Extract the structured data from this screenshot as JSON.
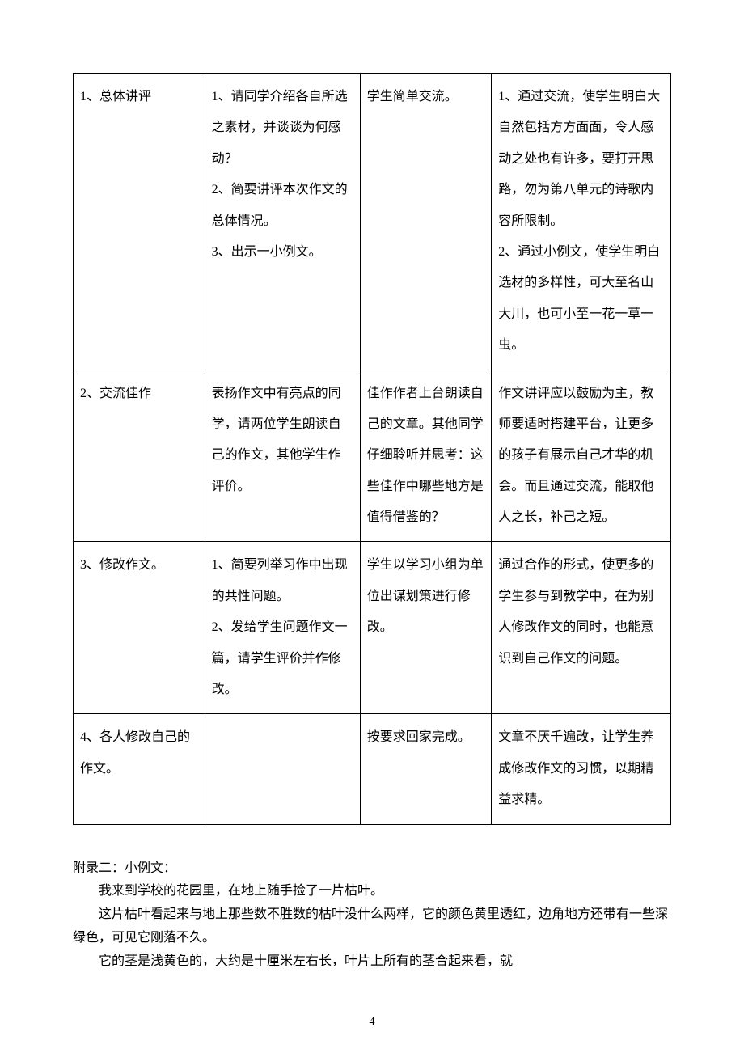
{
  "table": {
    "column_widths": [
      "22%",
      "26%",
      "22%",
      "30%"
    ],
    "cell_style": {
      "font_size": 16,
      "line_height": 2.4,
      "border_color": "#000000",
      "text_color": "#000000",
      "background_color": "#ffffff"
    },
    "rows": [
      {
        "c0": "1、总体讲评",
        "c1": "1、请同学介绍各自所选之素材，并谈谈为何感动？\n2、简要讲评本次作文的总体情况。\n3、出示一小例文。",
        "c2": "学生简单交流。",
        "c3": "1、通过交流，使学生明白大自然包括方方面面，令人感动之处也有许多，要打开思路，勿为第八单元的诗歌内容所限制。\n2、通过小例文，使学生明白选材的多样性，可大至名山大川，也可小至一花一草一虫。"
      },
      {
        "c0": "2、交流佳作",
        "c1": "表扬作文中有亮点的同学，请两位学生朗读自己的作文，其他学生作评价。",
        "c2": "佳作作者上台朗读自己的文章。其他同学仔细聆听并思考：这些佳作中哪些地方是值得借鉴的？",
        "c3": "作文讲评应以鼓励为主，教师要适时搭建平台，让更多的孩子有展示自己才华的机会。而且通过交流，能取他人之长，补己之短。"
      },
      {
        "c0": "3、修改作文。",
        "c1": "1、简要列举习作中出现的共性问题。\n2、发给学生问题作文一篇，请学生评价并作修改。",
        "c2": "学生以学习小组为单位出谋划策进行修改。",
        "c3": "通过合作的形式，使更多的学生参与到教学中，在为别人修改作文的同时，也能意识到自己作文的问题。"
      },
      {
        "c0": "4、各人修改自己的作文。",
        "c1": "",
        "c2": "按要求回家完成。",
        "c3": "文章不厌千遍改，让学生养成修改作文的习惯，以期精益求精。"
      }
    ]
  },
  "appendix": {
    "title": "附录二：小例文：",
    "p1": "我来到学校的花园里，在地上随手捡了一片枯叶。",
    "p2": "这片枯叶看起来与地上那些数不胜数的枯叶没什么两样，它的颜色黄里透红，边角地方还带有一些深绿色，可见它刚落不久。",
    "p3": "它的茎是浅黄色的，大约是十厘米左右长，叶片上所有的茎合起来看，就"
  },
  "page_number": "4"
}
